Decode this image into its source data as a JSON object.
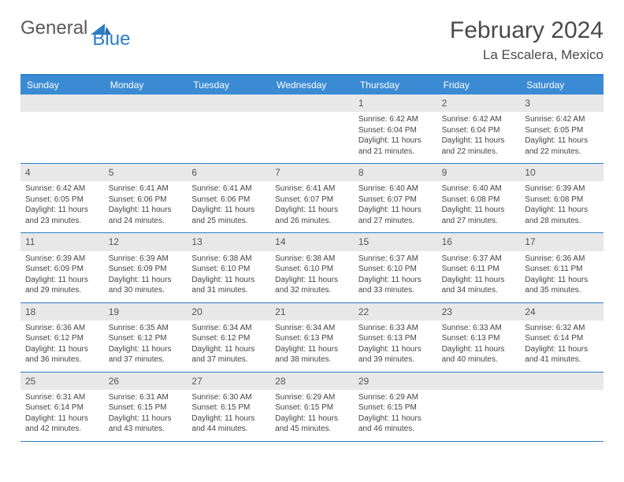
{
  "logo": {
    "text1": "General",
    "text2": "Blue"
  },
  "title": "February 2024",
  "location": "La Escalera, Mexico",
  "colors": {
    "header_bar": "#3b8bd4",
    "accent_line": "#2a7ec7",
    "daynum_bg": "#e8e8e8",
    "text": "#444444",
    "title_text": "#4a4a4a"
  },
  "weekdays": [
    "Sunday",
    "Monday",
    "Tuesday",
    "Wednesday",
    "Thursday",
    "Friday",
    "Saturday"
  ],
  "weeks": [
    [
      null,
      null,
      null,
      null,
      {
        "n": "1",
        "sr": "6:42 AM",
        "ss": "6:04 PM",
        "dl": "11 hours and 21 minutes."
      },
      {
        "n": "2",
        "sr": "6:42 AM",
        "ss": "6:04 PM",
        "dl": "11 hours and 22 minutes."
      },
      {
        "n": "3",
        "sr": "6:42 AM",
        "ss": "6:05 PM",
        "dl": "11 hours and 22 minutes."
      }
    ],
    [
      {
        "n": "4",
        "sr": "6:42 AM",
        "ss": "6:05 PM",
        "dl": "11 hours and 23 minutes."
      },
      {
        "n": "5",
        "sr": "6:41 AM",
        "ss": "6:06 PM",
        "dl": "11 hours and 24 minutes."
      },
      {
        "n": "6",
        "sr": "6:41 AM",
        "ss": "6:06 PM",
        "dl": "11 hours and 25 minutes."
      },
      {
        "n": "7",
        "sr": "6:41 AM",
        "ss": "6:07 PM",
        "dl": "11 hours and 26 minutes."
      },
      {
        "n": "8",
        "sr": "6:40 AM",
        "ss": "6:07 PM",
        "dl": "11 hours and 27 minutes."
      },
      {
        "n": "9",
        "sr": "6:40 AM",
        "ss": "6:08 PM",
        "dl": "11 hours and 27 minutes."
      },
      {
        "n": "10",
        "sr": "6:39 AM",
        "ss": "6:08 PM",
        "dl": "11 hours and 28 minutes."
      }
    ],
    [
      {
        "n": "11",
        "sr": "6:39 AM",
        "ss": "6:09 PM",
        "dl": "11 hours and 29 minutes."
      },
      {
        "n": "12",
        "sr": "6:39 AM",
        "ss": "6:09 PM",
        "dl": "11 hours and 30 minutes."
      },
      {
        "n": "13",
        "sr": "6:38 AM",
        "ss": "6:10 PM",
        "dl": "11 hours and 31 minutes."
      },
      {
        "n": "14",
        "sr": "6:38 AM",
        "ss": "6:10 PM",
        "dl": "11 hours and 32 minutes."
      },
      {
        "n": "15",
        "sr": "6:37 AM",
        "ss": "6:10 PM",
        "dl": "11 hours and 33 minutes."
      },
      {
        "n": "16",
        "sr": "6:37 AM",
        "ss": "6:11 PM",
        "dl": "11 hours and 34 minutes."
      },
      {
        "n": "17",
        "sr": "6:36 AM",
        "ss": "6:11 PM",
        "dl": "11 hours and 35 minutes."
      }
    ],
    [
      {
        "n": "18",
        "sr": "6:36 AM",
        "ss": "6:12 PM",
        "dl": "11 hours and 36 minutes."
      },
      {
        "n": "19",
        "sr": "6:35 AM",
        "ss": "6:12 PM",
        "dl": "11 hours and 37 minutes."
      },
      {
        "n": "20",
        "sr": "6:34 AM",
        "ss": "6:12 PM",
        "dl": "11 hours and 37 minutes."
      },
      {
        "n": "21",
        "sr": "6:34 AM",
        "ss": "6:13 PM",
        "dl": "11 hours and 38 minutes."
      },
      {
        "n": "22",
        "sr": "6:33 AM",
        "ss": "6:13 PM",
        "dl": "11 hours and 39 minutes."
      },
      {
        "n": "23",
        "sr": "6:33 AM",
        "ss": "6:13 PM",
        "dl": "11 hours and 40 minutes."
      },
      {
        "n": "24",
        "sr": "6:32 AM",
        "ss": "6:14 PM",
        "dl": "11 hours and 41 minutes."
      }
    ],
    [
      {
        "n": "25",
        "sr": "6:31 AM",
        "ss": "6:14 PM",
        "dl": "11 hours and 42 minutes."
      },
      {
        "n": "26",
        "sr": "6:31 AM",
        "ss": "6:15 PM",
        "dl": "11 hours and 43 minutes."
      },
      {
        "n": "27",
        "sr": "6:30 AM",
        "ss": "6:15 PM",
        "dl": "11 hours and 44 minutes."
      },
      {
        "n": "28",
        "sr": "6:29 AM",
        "ss": "6:15 PM",
        "dl": "11 hours and 45 minutes."
      },
      {
        "n": "29",
        "sr": "6:29 AM",
        "ss": "6:15 PM",
        "dl": "11 hours and 46 minutes."
      },
      null,
      null
    ]
  ],
  "labels": {
    "sunrise": "Sunrise:",
    "sunset": "Sunset:",
    "daylight": "Daylight:"
  }
}
